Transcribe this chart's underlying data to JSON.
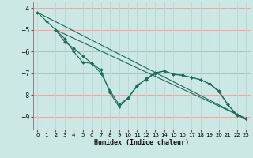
{
  "xlabel": "Humidex (Indice chaleur)",
  "bg_color": "#cce8e4",
  "line_color": "#1a6b5a",
  "grid_color_h": "#e8a0a0",
  "grid_color_v": "#b8d8d4",
  "xlim": [
    -0.5,
    23.5
  ],
  "ylim": [
    -9.6,
    -3.7
  ],
  "yticks": [
    -9,
    -8,
    -7,
    -6,
    -5,
    -4
  ],
  "xticks": [
    0,
    1,
    2,
    3,
    4,
    5,
    6,
    7,
    8,
    9,
    10,
    11,
    12,
    13,
    14,
    15,
    16,
    17,
    18,
    19,
    20,
    21,
    22,
    23
  ],
  "line1_x": [
    0,
    1,
    2,
    3,
    4,
    5,
    6,
    7,
    8,
    9,
    10,
    11,
    12,
    13,
    14,
    15,
    16,
    17,
    18,
    19,
    20,
    21,
    22,
    23
  ],
  "line1_y": [
    -4.2,
    -4.6,
    -5.0,
    -5.55,
    -5.85,
    -6.2,
    -6.55,
    -7.0,
    -7.8,
    -8.45,
    -8.15,
    -7.55,
    -7.3,
    -7.0,
    -6.9,
    -7.05,
    -7.1,
    -7.2,
    -7.3,
    -7.5,
    -7.8,
    -8.45,
    -8.9,
    -9.1
  ],
  "line2_x": [
    2,
    3,
    4,
    5,
    6,
    7,
    8,
    9,
    10,
    11,
    12,
    13,
    14,
    15,
    16,
    17,
    18,
    19,
    20,
    21,
    22,
    23
  ],
  "line2_y": [
    -5.0,
    -5.4,
    -6.0,
    -6.5,
    -6.55,
    -6.85,
    -7.9,
    -8.55,
    -8.15,
    -7.6,
    -7.25,
    -6.98,
    -6.9,
    -7.05,
    -7.1,
    -7.2,
    -7.3,
    -7.5,
    -7.85,
    -8.45,
    -8.95,
    -9.1
  ],
  "line3_x": [
    0,
    23
  ],
  "line3_y": [
    -4.2,
    -9.1
  ],
  "line4_x": [
    2,
    23
  ],
  "line4_y": [
    -5.0,
    -9.1
  ]
}
